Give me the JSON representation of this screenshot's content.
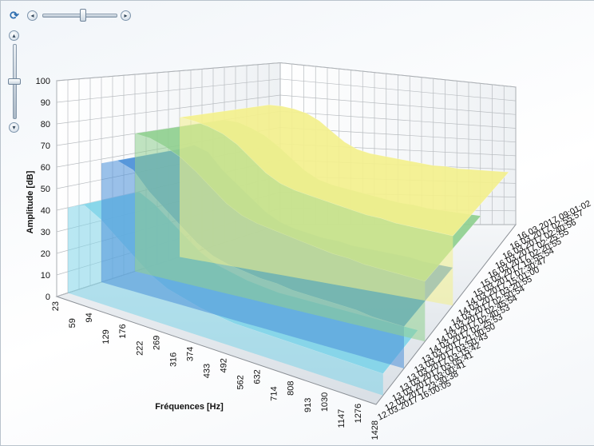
{
  "controls": {
    "refresh_icon": "refresh-icon",
    "h_left_glyph": "◂",
    "h_right_glyph": "▸",
    "v_up_glyph": "▴",
    "v_down_glyph": "▾",
    "h_slider_level": 0.55,
    "v_slider_level": 0.5
  },
  "chart_data": {
    "type": "surface3d",
    "ylabel": "Amplitude [dB]",
    "xlabel": "Fréquences [Hz]",
    "ylim": [
      0,
      100
    ],
    "y_ticks": [
      0,
      10,
      20,
      30,
      40,
      50,
      60,
      70,
      80,
      90,
      100
    ],
    "x_ticks": [
      "23",
      "59",
      "94",
      "129",
      "176",
      "222",
      "269",
      "316",
      "374",
      "433",
      "492",
      "562",
      "632",
      "714",
      "808",
      "913",
      "1030",
      "1147",
      "1276",
      "1428"
    ],
    "z_ticks": [
      "12.03.2017 16:00:05",
      "12.03.2017 23:30:38",
      "13.03.2017 03:00:41",
      "13.03.2017 03:05:41",
      "13.03.2017 03:15:42",
      "13.03.2017 03:50:43",
      "13.03.2017 21:00:50",
      "14.03.2017 02:25:53",
      "14.03.2017 02:40:53",
      "14.03.2017 02:45:54",
      "14.03.2017 02:50:54",
      "14.03.2017 03:20:55",
      "14.03.2017 15:01:00",
      "15.03.2017 07:30:47",
      "15.03.2017 19:55:54",
      "16.03.2017 02:20:55",
      "16.03.2017 02:25:55",
      "16.03.2017 02:40:56",
      "16.03.2017 02:55:57",
      "16.03.2017 09:01:02"
    ],
    "grid": true,
    "series": [
      {
        "color": "#f3f08d",
        "values": [
          75,
          75,
          74,
          72,
          68,
          62,
          56,
          52,
          50,
          49,
          48,
          47,
          46,
          45,
          45,
          44,
          44,
          44,
          44,
          44
        ]
      },
      {
        "color": "#8fcf8f",
        "values": [
          70,
          70,
          68,
          65,
          60,
          54,
          48,
          44,
          42,
          41,
          40,
          39,
          38,
          37,
          37,
          36,
          36,
          36,
          36,
          36
        ]
      },
      {
        "color": "#4a8fd8",
        "values": [
          58,
          62,
          60,
          52,
          46,
          40,
          34,
          30,
          28,
          27,
          26,
          26,
          25,
          25,
          25,
          25,
          25,
          24,
          24,
          24
        ]
      },
      {
        "color": "#7fd4e8",
        "values": [
          40,
          44,
          40,
          34,
          28,
          22,
          18,
          16,
          14,
          13,
          12,
          12,
          12,
          12,
          12,
          12,
          12,
          12,
          12,
          12
        ]
      }
    ]
  }
}
